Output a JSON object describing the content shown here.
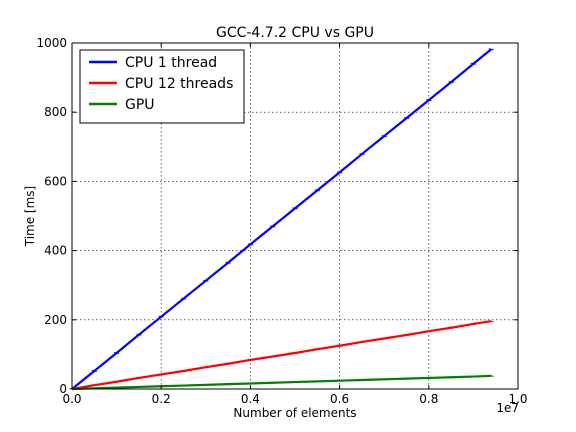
{
  "chart_data": {
    "type": "line",
    "title": "GCC-4.7.2 CPU vs GPU",
    "xlabel": "Number of elements",
    "ylabel": "Time [ms]",
    "x_offset_label": "1e7",
    "xlim": [
      0,
      1.0
    ],
    "ylim": [
      0,
      1000
    ],
    "x_ticks": [
      0.0,
      0.2,
      0.4,
      0.6,
      0.8,
      1.0
    ],
    "x_tick_labels": [
      "0.0",
      "0.2",
      "0.4",
      "0.6",
      "0.8",
      "1.0"
    ],
    "y_ticks": [
      0,
      200,
      400,
      600,
      800,
      1000
    ],
    "y_tick_labels": [
      "0",
      "200",
      "400",
      "600",
      "800",
      "1000"
    ],
    "grid": true,
    "legend_position": "top-left",
    "series": [
      {
        "name": "CPU 1 thread",
        "color": "#0000ff",
        "x": [
          0.0,
          0.05,
          0.1,
          0.15,
          0.2,
          0.25,
          0.3,
          0.35,
          0.4,
          0.45,
          0.5,
          0.55,
          0.6,
          0.65,
          0.7,
          0.75,
          0.8,
          0.85,
          0.9,
          0.94
        ],
        "y": [
          0,
          52,
          104,
          157,
          209,
          261,
          313,
          365,
          418,
          470,
          522,
          574,
          626,
          679,
          731,
          783,
          835,
          887,
          940,
          982
        ]
      },
      {
        "name": "CPU 12 threads",
        "color": "#ff0000",
        "x": [
          0.0,
          0.05,
          0.1,
          0.15,
          0.2,
          0.25,
          0.3,
          0.35,
          0.4,
          0.45,
          0.5,
          0.55,
          0.6,
          0.65,
          0.7,
          0.75,
          0.8,
          0.85,
          0.9,
          0.94
        ],
        "y": [
          0,
          11,
          21,
          32,
          42,
          52,
          63,
          73,
          84,
          94,
          104,
          115,
          125,
          136,
          146,
          156,
          167,
          177,
          188,
          196
        ]
      },
      {
        "name": "GPU",
        "color": "#008000",
        "x": [
          0.0,
          0.05,
          0.1,
          0.15,
          0.2,
          0.25,
          0.3,
          0.35,
          0.4,
          0.45,
          0.5,
          0.55,
          0.6,
          0.65,
          0.7,
          0.75,
          0.8,
          0.85,
          0.9,
          0.94
        ],
        "y": [
          0,
          2,
          4,
          6,
          8,
          10,
          12,
          14,
          16,
          18,
          20,
          22,
          24,
          26,
          28,
          30,
          32,
          34,
          36,
          38
        ]
      }
    ]
  }
}
